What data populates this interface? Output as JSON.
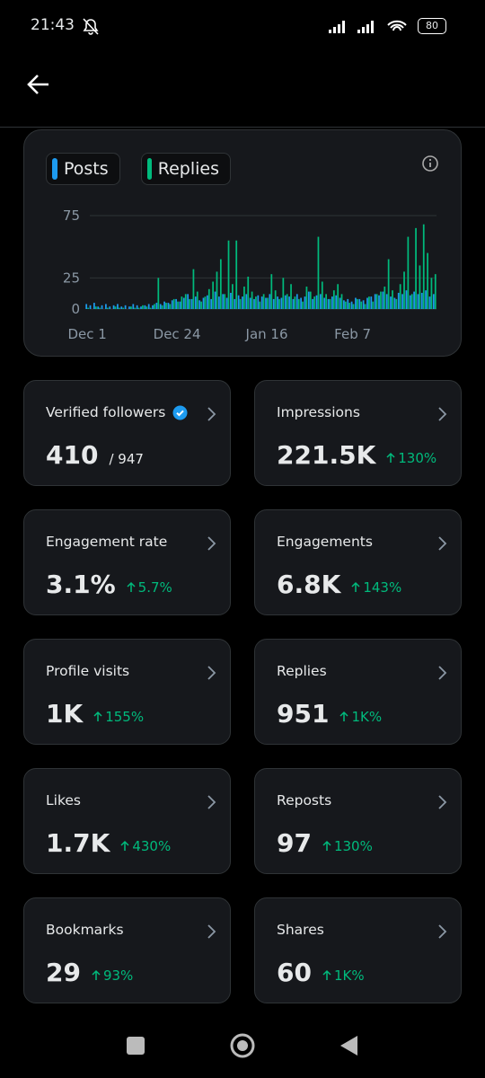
{
  "status_bar": {
    "time": "21:43",
    "battery": "80"
  },
  "chart_data": {
    "type": "bar",
    "categories": [
      "Dec 1",
      null,
      null,
      null,
      null,
      null,
      null,
      null,
      null,
      null,
      null,
      null,
      null,
      null,
      null,
      null,
      null,
      null,
      null,
      null,
      null,
      null,
      null,
      "Dec 24",
      null,
      null,
      null,
      null,
      null,
      null,
      null,
      null,
      null,
      null,
      null,
      null,
      null,
      null,
      null,
      null,
      null,
      null,
      null,
      null,
      null,
      null,
      "Jan 16",
      null,
      null,
      null,
      null,
      null,
      null,
      null,
      null,
      null,
      null,
      null,
      null,
      null,
      null,
      null,
      null,
      null,
      null,
      null,
      null,
      null,
      "Feb 7",
      null,
      null,
      null,
      null,
      null,
      null,
      null,
      null,
      null,
      null,
      null,
      null,
      null,
      null,
      null,
      null,
      null,
      null,
      null,
      null,
      null
    ],
    "series": [
      {
        "name": "Posts",
        "color": "#1d9bf0",
        "values": [
          4,
          3,
          5,
          2,
          3,
          4,
          2,
          3,
          4,
          2,
          3,
          2,
          4,
          3,
          2,
          3,
          4,
          3,
          5,
          4,
          6,
          5,
          7,
          8,
          6,
          9,
          12,
          8,
          10,
          7,
          9,
          11,
          8,
          14,
          10,
          12,
          9,
          13,
          8,
          11,
          10,
          12,
          9,
          8,
          11,
          10,
          9,
          12,
          8,
          10,
          9,
          11,
          10,
          8,
          12,
          9,
          10,
          14,
          8,
          11,
          12,
          9,
          8,
          10,
          11,
          9,
          7,
          8,
          6,
          9,
          8,
          7,
          9,
          10,
          12,
          11,
          14,
          12,
          10,
          9,
          13,
          12,
          15,
          11,
          14,
          12,
          13,
          15,
          10,
          12
        ]
      },
      {
        "name": "Replies",
        "color": "#00ba7c",
        "values": [
          1,
          0,
          2,
          1,
          0,
          1,
          0,
          2,
          1,
          1,
          0,
          2,
          1,
          1,
          3,
          2,
          1,
          4,
          25,
          3,
          5,
          4,
          8,
          6,
          10,
          12,
          8,
          32,
          14,
          6,
          10,
          16,
          22,
          30,
          40,
          12,
          55,
          20,
          55,
          8,
          18,
          26,
          14,
          10,
          6,
          12,
          9,
          28,
          15,
          8,
          25,
          12,
          20,
          10,
          8,
          6,
          18,
          14,
          10,
          58,
          22,
          12,
          8,
          15,
          20,
          12,
          6,
          5,
          4,
          8,
          6,
          4,
          10,
          6,
          12,
          14,
          18,
          40,
          15,
          8,
          20,
          30,
          58,
          12,
          65,
          35,
          68,
          45,
          25,
          28
        ]
      }
    ],
    "ylim": [
      0,
      75
    ],
    "yticks": [
      0,
      25,
      75
    ],
    "grid": true
  },
  "cards": [
    {
      "label": "Verified followers",
      "value": "410",
      "total": "/ 947",
      "verified": true
    },
    {
      "label": "Impressions",
      "value": "221.5K",
      "change": "130%"
    },
    {
      "label": "Engagement rate",
      "value": "3.1%",
      "change": "5.7%"
    },
    {
      "label": "Engagements",
      "value": "6.8K",
      "change": "143%"
    },
    {
      "label": "Profile visits",
      "value": "1K",
      "change": "155%"
    },
    {
      "label": "Replies",
      "value": "951",
      "change": "1K%"
    },
    {
      "label": "Likes",
      "value": "1.7K",
      "change": "430%"
    },
    {
      "label": "Reposts",
      "value": "97",
      "change": "130%"
    },
    {
      "label": "Bookmarks",
      "value": "29",
      "change": "93%"
    },
    {
      "label": "Shares",
      "value": "60",
      "change": "1K%"
    }
  ]
}
